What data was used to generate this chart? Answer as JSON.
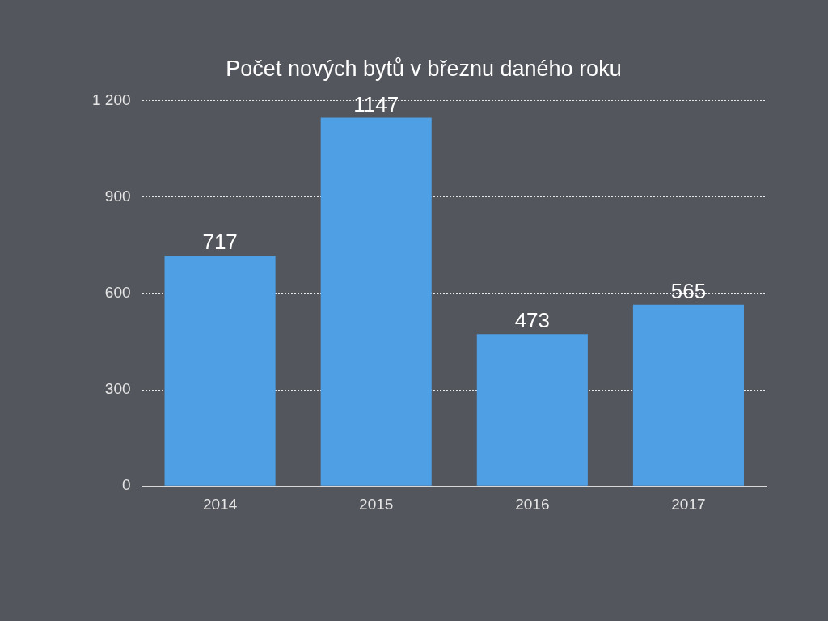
{
  "chart_data": {
    "type": "bar",
    "title": "Počet nových bytů v březnu daného roku",
    "categories": [
      "2014",
      "2015",
      "2016",
      "2017"
    ],
    "values": [
      717,
      1147,
      473,
      565
    ],
    "color": "#4f9fe4",
    "ylim": [
      0,
      1200
    ],
    "yticks": [
      0,
      300,
      600,
      900,
      {
        "value": 1200,
        "label": "1 200"
      }
    ],
    "grid": "y",
    "data_labels": true
  }
}
